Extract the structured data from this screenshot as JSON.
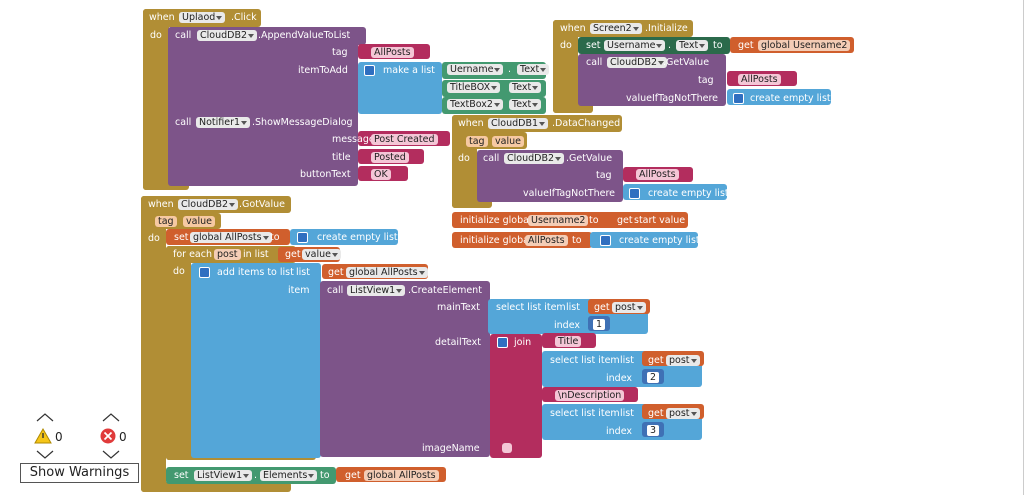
{
  "g1": {
    "when": "when",
    "component": "Uplaod",
    "event": ".Click",
    "do": "do",
    "call": "call",
    "db": "CloudDB2",
    "method": ".AppendValueToList",
    "tag_label": "tag",
    "tag": "AllPosts",
    "item_label": "itemToAdd",
    "make_list": "make a list",
    "item1_component": "Uername",
    "item1_dot": ".",
    "item1_property": "Text",
    "item2_component": "TitleBOX",
    "item2_property": "Text",
    "item3_component": "TextBox2",
    "item3_property": "Text",
    "call2": "call",
    "notifier": "Notifier1",
    "method2": ".ShowMessageDialog",
    "message_label": "message",
    "message": "Post Created",
    "title_label": "title",
    "title": "Posted",
    "button_label": "buttonText",
    "button": "OK"
  },
  "g2": {
    "when": "when",
    "component": "Screen2",
    "event": ".Initialize",
    "do": "do",
    "set": "set",
    "set_component": "Username",
    "set_dot": ".",
    "set_property": "Text",
    "to": "to",
    "get": "get",
    "get_var": "global Username2",
    "call": "call",
    "db": "CloudDB2",
    "method": ".GetValue",
    "tag_label": "tag",
    "tag": "AllPosts",
    "default_label": "valueIfTagNotThere",
    "default": "create empty list"
  },
  "g3": {
    "when": "when",
    "component": "CloudDB1",
    "event": ".DataChanged",
    "param1": "tag",
    "param2": "value",
    "do": "do",
    "call": "call",
    "db": "CloudDB2",
    "method": ".GetValue",
    "tag_label": "tag",
    "tag": "AllPosts",
    "default_label": "valueIfTagNotThere",
    "default": "create empty list"
  },
  "g4": {
    "init1": "initialize global",
    "name1": "Username2",
    "to1": "to",
    "get": "get",
    "start": "start value",
    "init2": "initialize global",
    "name2": "AllPosts",
    "to2": "to",
    "create": "create empty list"
  },
  "g5": {
    "when": "when",
    "component": "CloudDB2",
    "event": ".GotValue",
    "param1": "tag",
    "param2": "value",
    "do": "do",
    "set": "set",
    "set_var": "global AllPosts",
    "to": "to",
    "create": "create empty list",
    "for_each": "for each",
    "loop_var": "post",
    "in_list": "in list",
    "get_value": "get",
    "value_var": "value",
    "loop_do": "do",
    "add_items": "add items to list",
    "list_label": "list",
    "get_list": "get",
    "list_var": "global AllPosts",
    "item_label": "item",
    "call": "call",
    "listview": "ListView1",
    "method": ".CreateElement",
    "main_label": "mainText",
    "select1": "select list item",
    "select1_list": "list",
    "get1": "get",
    "get1_var": "post",
    "index1_label": "index",
    "index1": 1,
    "detail_label": "detailText",
    "join": "join",
    "text1": "Title",
    "select2": "select list item",
    "select2_list": "list",
    "get2": "get",
    "get2_var": "post",
    "index2_label": "index",
    "index2": 2,
    "text2": "\\nDescription",
    "select3": "select list item",
    "select3_list": "list",
    "get3": "get",
    "get3_var": "post",
    "index3_label": "index",
    "index3": 3,
    "image_label": "imageName",
    "set2": "set",
    "set2_component": "ListView1",
    "set2_dot": ".",
    "set2_property": "Elements",
    "to2": "to",
    "get_elements": "get",
    "elements_var": "global AllPosts"
  },
  "warnings": {
    "warning_count": 0,
    "error_count": 0,
    "button": "Show Warnings"
  }
}
